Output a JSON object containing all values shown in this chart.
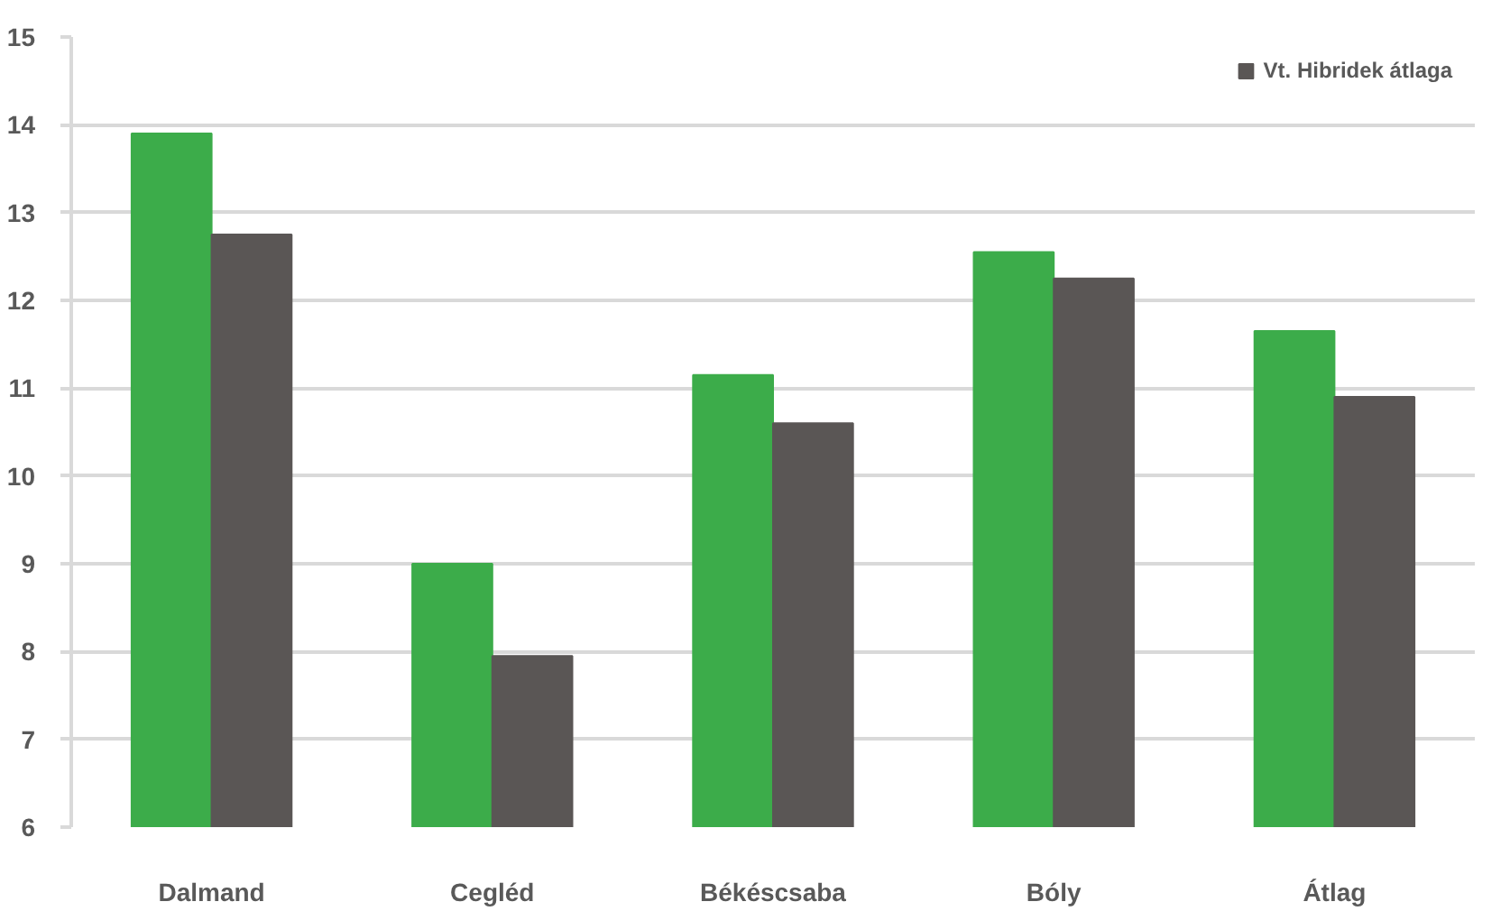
{
  "chart_data": {
    "type": "bar",
    "categories": [
      "Dalmand",
      "Cegléd",
      "Békéscsaba",
      "Bóly",
      "Átlag"
    ],
    "series": [
      {
        "color": "#3cac4a",
        "values": [
          13.9,
          9.0,
          11.15,
          12.55,
          11.65
        ]
      },
      {
        "name": "Vt. Hibridek átlaga",
        "color": "#5a5655",
        "values": [
          12.75,
          7.95,
          10.6,
          12.25,
          10.9
        ]
      }
    ],
    "ylim": [
      6,
      15
    ],
    "yticks": [
      6,
      7,
      8,
      9,
      10,
      11,
      12,
      13,
      14,
      15
    ],
    "grid": "y",
    "legend": "top right"
  }
}
